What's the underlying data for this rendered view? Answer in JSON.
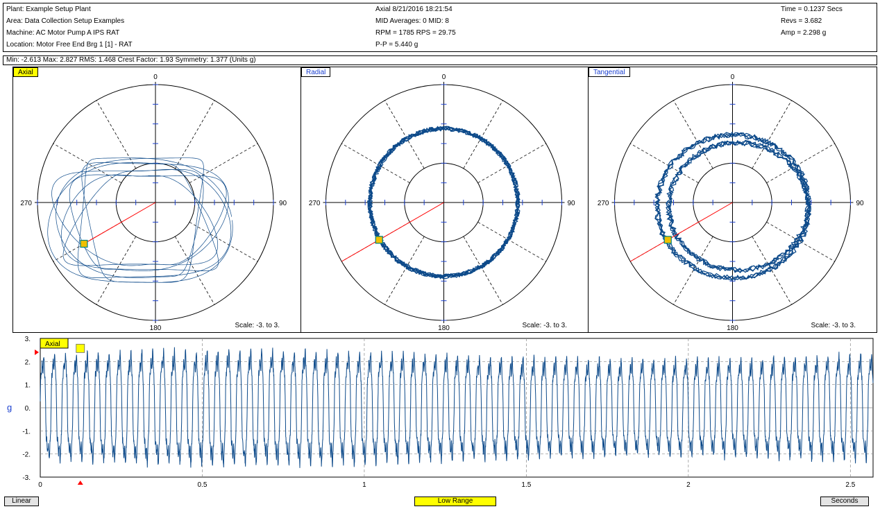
{
  "header": {
    "plant": "Plant: Example Setup Plant",
    "area": "Area:  Data Collection Setup Examples",
    "machine": "Machine:  AC Motor   Pump A IPS   RAT",
    "location": "Location: Motor Free End Brg 1 [1] - RAT",
    "axis_time": "Axial   8/21/2016   18:21:54",
    "mid_averages": "MID Averages: 0    MID: 8",
    "rpm": "RPM = 1785    RPS = 29.75",
    "pp": "P-P = 5.440 g",
    "time": "Time = 0.1237 Secs",
    "revs": "Revs = 3.682",
    "amp": "Amp = 2.298 g"
  },
  "stats": "Min: -2.613   Max: 2.827   RMS: 1.468   Crest Factor: 1.93   Symmetry: 1.377   (Units g)",
  "colors": {
    "trace": "#0d4a8a",
    "tick": "#1a3fcf",
    "cursor": "#ff0000",
    "tag_yellow": "#ffff00"
  },
  "panels": [
    {
      "label": "Axial",
      "top": "0",
      "bottom": "180",
      "left": "270",
      "right": "90",
      "scale": "Scale: -3. to 3."
    },
    {
      "label": "Radial",
      "top": "0",
      "bottom": "180",
      "left": "270",
      "right": "90",
      "scale": "Scale: -3. to 3."
    },
    {
      "label": "Tangential",
      "top": "0",
      "bottom": "180",
      "left": "270",
      "right": "90",
      "scale": "Scale: -3. to 3."
    }
  ],
  "waveform": {
    "label": "Axial",
    "ylabel": "g",
    "yticks": [
      "3.",
      "2.",
      "1.",
      "0.",
      "-1.",
      "-2.",
      "-3."
    ],
    "xticks": [
      "0",
      "0.5",
      "1",
      "1.5",
      "2",
      "2.5"
    ]
  },
  "buttons": {
    "linear": "Linear",
    "low_range": "Low Range",
    "seconds": "Seconds"
  },
  "chart_data": [
    {
      "type": "scatter",
      "title": "Axial",
      "polar": true,
      "angle_labels": [
        "0",
        "90",
        "180",
        "270"
      ],
      "rlim": [
        -3,
        3
      ],
      "cursor_angle_deg": 240,
      "orbit_radius_approx": [
        1.6,
        2.1
      ]
    },
    {
      "type": "scatter",
      "title": "Radial",
      "polar": true,
      "angle_labels": [
        "0",
        "90",
        "180",
        "270"
      ],
      "rlim": [
        -3,
        3
      ],
      "cursor_angle_deg": 240,
      "orbit_radius_approx": 1.9
    },
    {
      "type": "scatter",
      "title": "Tangential",
      "polar": true,
      "angle_labels": [
        "0",
        "90",
        "180",
        "270"
      ],
      "rlim": [
        -3,
        3
      ],
      "cursor_angle_deg": 240,
      "orbit_radius_approx": [
        1.8,
        2.1
      ]
    },
    {
      "type": "line",
      "title": "Axial",
      "xlabel": "Seconds",
      "ylabel": "g",
      "xlim": [
        0,
        2.57
      ],
      "ylim": [
        -3,
        3
      ],
      "cycle_frequency_hz": 29.75,
      "min": -2.613,
      "max": 2.827,
      "cursor_x": 0.1237
    }
  ]
}
